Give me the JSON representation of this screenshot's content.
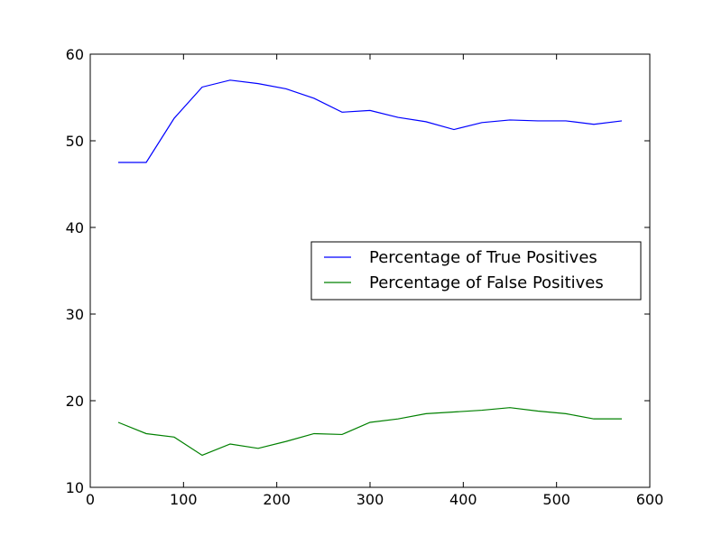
{
  "chart_data": {
    "type": "line",
    "title": "",
    "xlabel": "",
    "ylabel": "",
    "xlim": [
      0,
      600
    ],
    "ylim": [
      10,
      60
    ],
    "x_ticks": [
      0,
      100,
      200,
      300,
      400,
      500,
      600
    ],
    "y_ticks": [
      10,
      20,
      30,
      40,
      50,
      60
    ],
    "grid": false,
    "legend_position": "center-right",
    "x": [
      30,
      60,
      90,
      120,
      150,
      180,
      210,
      240,
      270,
      300,
      330,
      360,
      390,
      420,
      450,
      480,
      510,
      540,
      570
    ],
    "series": [
      {
        "name": "Percentage of True Positives",
        "color": "#0000ff",
        "values": [
          47.5,
          47.5,
          52.6,
          56.2,
          57.0,
          56.6,
          56.0,
          54.9,
          53.3,
          53.5,
          52.7,
          52.2,
          51.3,
          52.1,
          52.4,
          52.3,
          52.3,
          51.9,
          52.3
        ]
      },
      {
        "name": "Percentage of False Positives",
        "color": "#008000",
        "values": [
          17.5,
          16.2,
          15.8,
          13.7,
          15.0,
          14.5,
          15.3,
          16.2,
          16.1,
          17.5,
          17.9,
          18.5,
          18.7,
          18.9,
          19.2,
          18.8,
          18.5,
          17.9,
          17.9
        ]
      }
    ]
  }
}
